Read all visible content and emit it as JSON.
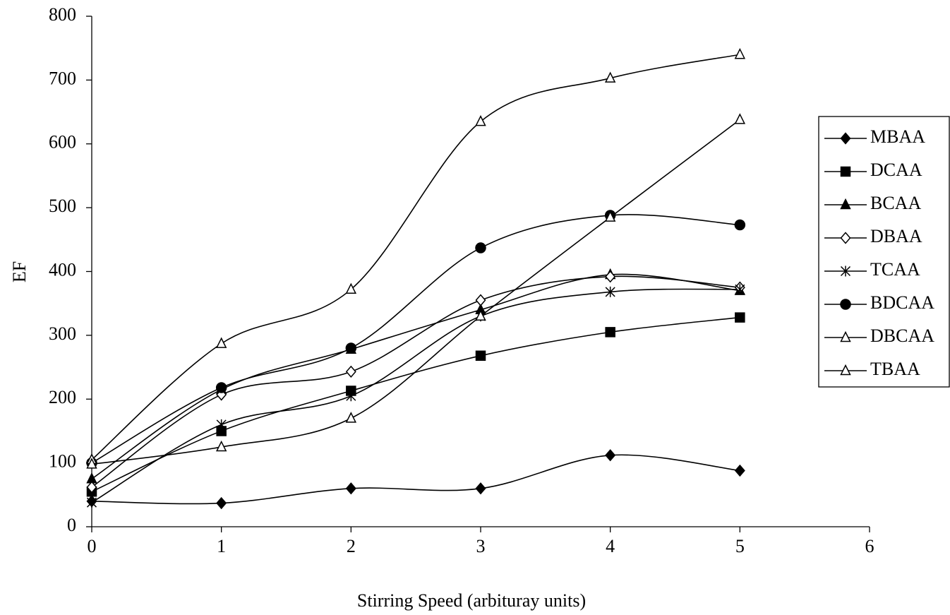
{
  "chart_data": {
    "type": "line",
    "x_label": "Stirring Speed (arbituray units)",
    "y_label": "EF",
    "x": [
      0,
      1,
      2,
      3,
      4,
      5
    ],
    "xlim": [
      0,
      6
    ],
    "xticks": [
      0,
      1,
      2,
      3,
      4,
      5,
      6
    ],
    "ylim": [
      0,
      800
    ],
    "yticks": [
      0,
      100,
      200,
      300,
      400,
      500,
      600,
      700,
      800
    ],
    "grid": false,
    "smooth": true,
    "legend": "right",
    "series": [
      {
        "name": "MBAA",
        "color": "#000000",
        "marker": "diamond",
        "filled": true,
        "values": [
          40,
          37,
          60,
          60,
          112,
          88
        ]
      },
      {
        "name": "DCAA",
        "color": "#000000",
        "marker": "square",
        "filled": true,
        "values": [
          55,
          150,
          213,
          268,
          305,
          328
        ]
      },
      {
        "name": "BCAA",
        "color": "#000000",
        "marker": "triangle",
        "filled": true,
        "values": [
          75,
          215,
          278,
          340,
          395,
          370
        ]
      },
      {
        "name": "DBAA",
        "color": "#000000",
        "marker": "diamond",
        "filled": false,
        "values": [
          62,
          207,
          243,
          355,
          392,
          375
        ]
      },
      {
        "name": "TCAA",
        "color": "#000000",
        "marker": "star",
        "filled": false,
        "values": [
          38,
          160,
          205,
          330,
          368,
          372
        ]
      },
      {
        "name": "BDCAA",
        "color": "#000000",
        "marker": "circle",
        "filled": true,
        "values": [
          100,
          218,
          280,
          437,
          488,
          473
        ]
      },
      {
        "name": "DBCAA",
        "color": "#000000",
        "marker": "triangle",
        "filled": false,
        "values": [
          105,
          287,
          372,
          635,
          703,
          740
        ]
      },
      {
        "name": "TBAA",
        "color": "#000000",
        "marker": "triangle",
        "filled": false,
        "values": [
          98,
          125,
          170,
          330,
          485,
          638
        ]
      }
    ]
  }
}
